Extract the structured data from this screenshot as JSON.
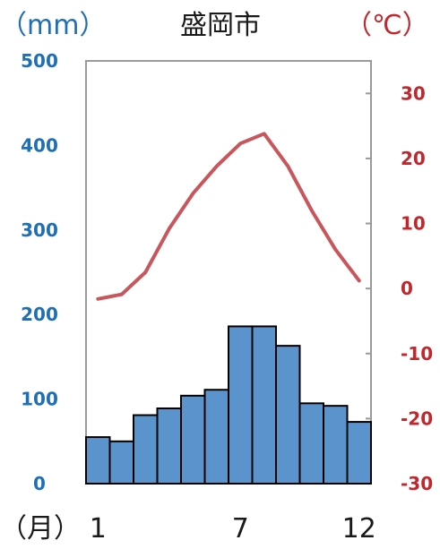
{
  "chart_data": {
    "type": "bar+line",
    "title": "盛岡市",
    "precip_unit_label": "（mm）",
    "temp_unit_label": "（℃）",
    "x_unit_label": "（月）",
    "months": [
      1,
      2,
      3,
      4,
      5,
      6,
      7,
      8,
      9,
      10,
      11,
      12
    ],
    "x_tick_labels": [
      {
        "month": 1,
        "label": "1"
      },
      {
        "month": 7,
        "label": "7"
      },
      {
        "month": 12,
        "label": "12"
      }
    ],
    "series": [
      {
        "kind": "bar",
        "axis": "left",
        "color": "#5b93cc",
        "values": [
          55,
          50,
          81,
          89,
          104,
          111,
          186,
          186,
          163,
          95,
          92,
          73
        ]
      },
      {
        "kind": "line",
        "axis": "right",
        "color": "#c9565b",
        "values": [
          -1.6,
          -0.9,
          2.5,
          9.2,
          14.6,
          18.8,
          22.3,
          23.8,
          18.8,
          12.0,
          6.0,
          1.2
        ]
      }
    ],
    "left_axis": {
      "ylim": [
        0,
        500
      ],
      "ticks": [
        "0",
        "100",
        "200",
        "300",
        "400",
        "500"
      ]
    },
    "right_axis": {
      "ylim": [
        -30,
        35
      ],
      "ticks": [
        "-30",
        "-20",
        "-10",
        "0",
        "10",
        "20",
        "30"
      ]
    }
  }
}
